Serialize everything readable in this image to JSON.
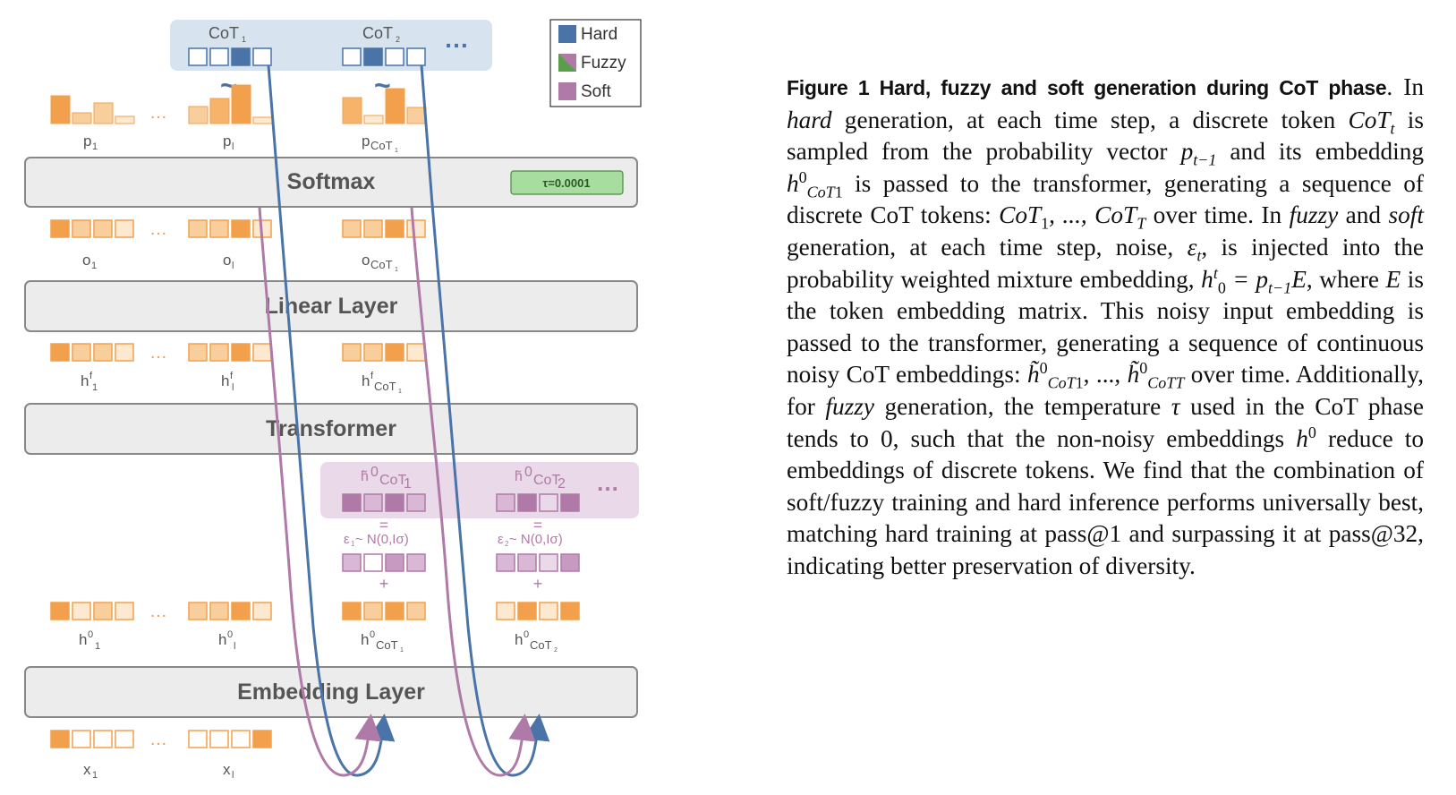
{
  "legend": {
    "hard": "Hard",
    "fuzzy": "Fuzzy",
    "soft": "Soft"
  },
  "colors": {
    "hard": "#4a74a8",
    "soft": "#b07aa8",
    "orange": "#f2a04c",
    "orange_light": "#f8cf9c",
    "orange_pale": "#fde9d0",
    "tau_box": "#a7dd9f"
  },
  "top": {
    "cot1": "CoT",
    "cot1_sub": "1",
    "cot2": "CoT",
    "cot2_sub": "2",
    "ellipsis": "…",
    "tilde": "~"
  },
  "probs": {
    "p1": "p",
    "p1_sub": "1",
    "pl": "p",
    "pl_sub": "l",
    "pcot": "p",
    "pcot_sub": "CoT",
    "pcot_subsub": "1"
  },
  "layers": {
    "softmax": "Softmax",
    "tau": "τ=0.0001",
    "linear": "Linear Layer",
    "transformer": "Transformer",
    "embedding": "Embedding Layer"
  },
  "outputs": {
    "o1": "o",
    "o1_sub": "1",
    "ol": "o",
    "ol_sub": "l",
    "ocot": "o",
    "ocot_sub": "CoT",
    "ocot_subsub": "1"
  },
  "hidden": {
    "hf1": "h",
    "hf1_sup": "f",
    "hf1_sub": "1",
    "hfl": "h",
    "hfl_sup": "f",
    "hfl_sub": "l",
    "hfcot": "h",
    "hfcot_sup": "f",
    "hfcot_sub": "CoT",
    "hfcot_subsub": "1"
  },
  "noisy": {
    "h1": "h̃",
    "h1_sup": "0",
    "h1_sub": "CoT",
    "h1_subsub": "1",
    "h2": "h̃",
    "h2_sup": "0",
    "h2_sub": "CoT",
    "h2_subsub": "2",
    "equals": "=",
    "plus": "+",
    "eps1": "ε",
    "eps1_sub": "1",
    "eps1_rest": " ~ N(0,Iσ)",
    "eps2": "ε",
    "eps2_sub": "2",
    "eps2_rest": " ~ N(0,Iσ)",
    "ellipsis": "…"
  },
  "embeds": {
    "h01": "h",
    "h01_sup": "0",
    "h01_sub": "1",
    "h0l": "h",
    "h0l_sup": "0",
    "h0l_sub": "l",
    "h0cot1": "h",
    "h0cot1_sup": "0",
    "h0cot1_sub": "CoT",
    "h0cot1_subsub": "1",
    "h0cot2": "h",
    "h0cot2_sup": "0",
    "h0cot2_sub": "CoT",
    "h0cot2_subsub": "2"
  },
  "inputs": {
    "x1": "x",
    "x1_sub": "1",
    "xl": "x",
    "xl_sub": "l",
    "ellipsis": "…"
  },
  "caption": {
    "head": "Figure 1  Hard, fuzzy and soft generation during CoT phase",
    "period": ".",
    "s1": " In ",
    "hard": "hard",
    "s2": " generation, at each time step, a discrete token ",
    "cot_t": "CoT",
    "t": "t",
    "s3": " is sampled from the probability vector ",
    "p": "p",
    "tm1": "t−1",
    "s4": " and its embedding ",
    "h": "h",
    "zero": "0",
    "cot1sub": "CoT",
    "one": "1",
    "s5": " is passed to the transformer, generating a sequence of discrete CoT tokens: ",
    "seq": "CoT",
    "seq_mid": ", ..., CoT",
    "T": "T",
    "s6": " over time. In ",
    "fuzzy": "fuzzy",
    "s7": " and ",
    "soft": "soft",
    "s8": " generation, at each time step, noise, ",
    "eps": "ε",
    "s9": ", is injected into the probability weighted mixture embedding, ",
    "eq": " = p",
    "E": "E",
    "s10": ", where ",
    "s11": " is the token embedding matrix. This noisy input embedding is passed to the transformer, generating a sequence of continuous noisy CoT embeddings: ",
    "htilde": "h̃",
    "dots": ", ..., ",
    "s12": " over time.  Additionally, for ",
    "s13": " generation, the temperature ",
    "tau": "τ",
    "s14": " used in the CoT phase tends to 0, such that the non-noisy embeddings ",
    "s15": " reduce to embeddings of discrete tokens.  We find that the combination of soft/fuzzy training and hard inference performs universally best, matching hard training at pass@1 and surpassing it at pass@32, indicating better preservation of diversity."
  }
}
